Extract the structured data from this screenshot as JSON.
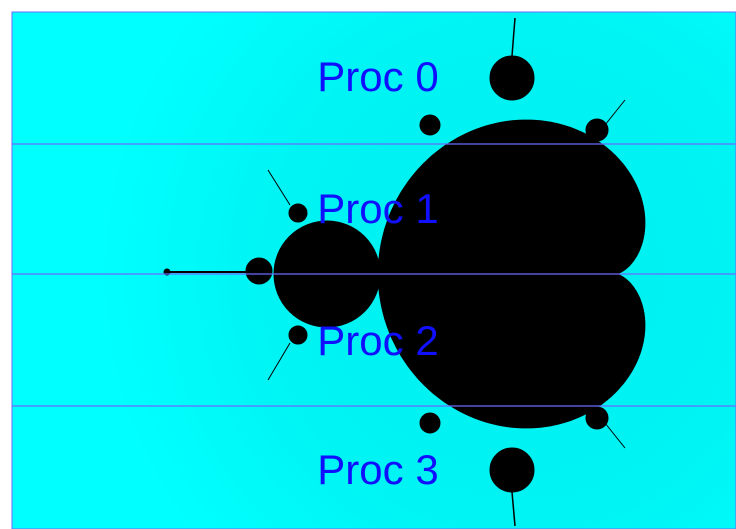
{
  "labels": [
    "Proc 0",
    "Proc 1",
    "Proc 2",
    "Proc 3"
  ]
}
